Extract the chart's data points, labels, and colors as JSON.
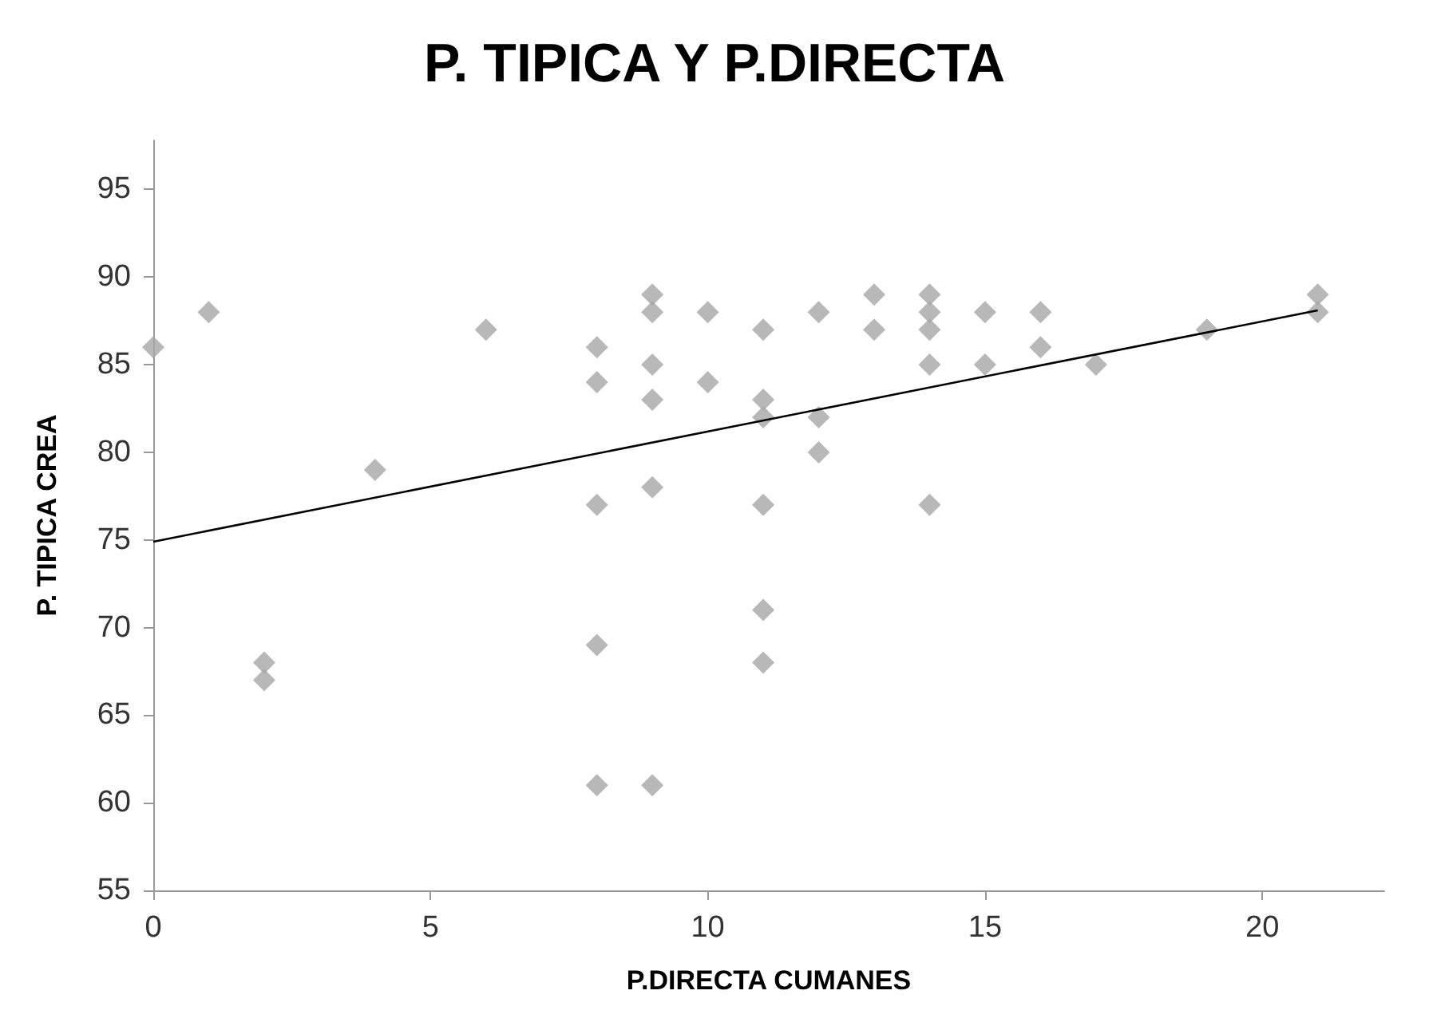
{
  "chart_data": {
    "type": "scatter",
    "title": "P. TIPICA Y P.DIRECTA",
    "xlabel": "P.DIRECTA CUMANES",
    "ylabel": "P. TIPICA CREA",
    "series": [
      {
        "color": "#a6a6a6",
        "marker": "diamond",
        "x": [
          0,
          1,
          2,
          2,
          4,
          6,
          8,
          8,
          8,
          8,
          8,
          9,
          9,
          9,
          9,
          9,
          9,
          10,
          10,
          11,
          11,
          11,
          11,
          11,
          11,
          12,
          12,
          12,
          13,
          13,
          14,
          14,
          14,
          14,
          14,
          15,
          15,
          16,
          16,
          17,
          19,
          21,
          21
        ],
        "values": [
          86,
          88,
          68,
          67,
          79,
          87,
          86,
          84,
          77,
          69,
          61,
          89,
          88,
          85,
          83,
          78,
          61,
          88,
          84,
          87,
          83,
          82,
          77,
          71,
          68,
          88,
          82,
          80,
          89,
          87,
          89,
          88,
          87,
          85,
          77,
          88,
          85,
          88,
          86,
          85,
          87,
          89,
          88
        ]
      },
      {
        "type": "line",
        "color": "#000000",
        "marker": "none",
        "line_style": "solid",
        "x": [
          0,
          21
        ],
        "values": [
          74.9,
          88.1
        ]
      }
    ],
    "xlim": [
      0,
      22.2
    ],
    "xticks": [
      0,
      5,
      10,
      15,
      20
    ],
    "ylim": [
      55,
      97.8
    ],
    "yticks": [
      55,
      60,
      65,
      70,
      75,
      80,
      85,
      90,
      95
    ]
  }
}
